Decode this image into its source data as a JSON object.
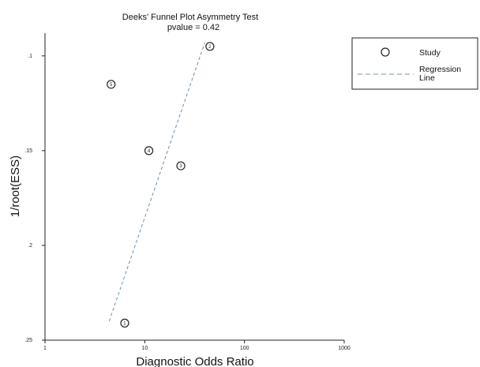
{
  "chart_data": {
    "type": "scatter",
    "title": "Deeks' Funnel Plot Asymmetry Test",
    "subtitle": "pvalue =  0.42",
    "xlabel": "Diagnostic Odds Ratio",
    "ylabel": "1/root(ESS)",
    "x_scale": "log",
    "xlim": [
      1,
      1000
    ],
    "ylim": [
      0.25,
      0.088
    ],
    "x_ticks": [
      1,
      10,
      100,
      1000
    ],
    "x_tick_labels": [
      "1",
      "10",
      "100",
      "1000"
    ],
    "y_ticks": [
      0.1,
      0.15,
      0.2,
      0.25
    ],
    "y_tick_labels": [
      ".1",
      ".15",
      ".2",
      ".25"
    ],
    "points": [
      {
        "label": "1",
        "x": 6.3,
        "y": 0.241
      },
      {
        "label": "2",
        "x": 45,
        "y": 0.095
      },
      {
        "label": "3",
        "x": 23,
        "y": 0.158
      },
      {
        "label": "4",
        "x": 11,
        "y": 0.15
      },
      {
        "label": "5",
        "x": 4.6,
        "y": 0.115
      }
    ],
    "regression_line": {
      "x": [
        4.4,
        40
      ],
      "y": [
        0.24,
        0.093
      ]
    },
    "legend": {
      "position": "top-right",
      "items": [
        {
          "symbol": "circle",
          "label": "Study"
        },
        {
          "symbol": "dashed-line",
          "label_lines": [
            "Regression",
            "Line"
          ]
        }
      ]
    },
    "colors": {
      "points": "#222222",
      "regression": "#6f8fa8",
      "axis": "#222222"
    }
  }
}
